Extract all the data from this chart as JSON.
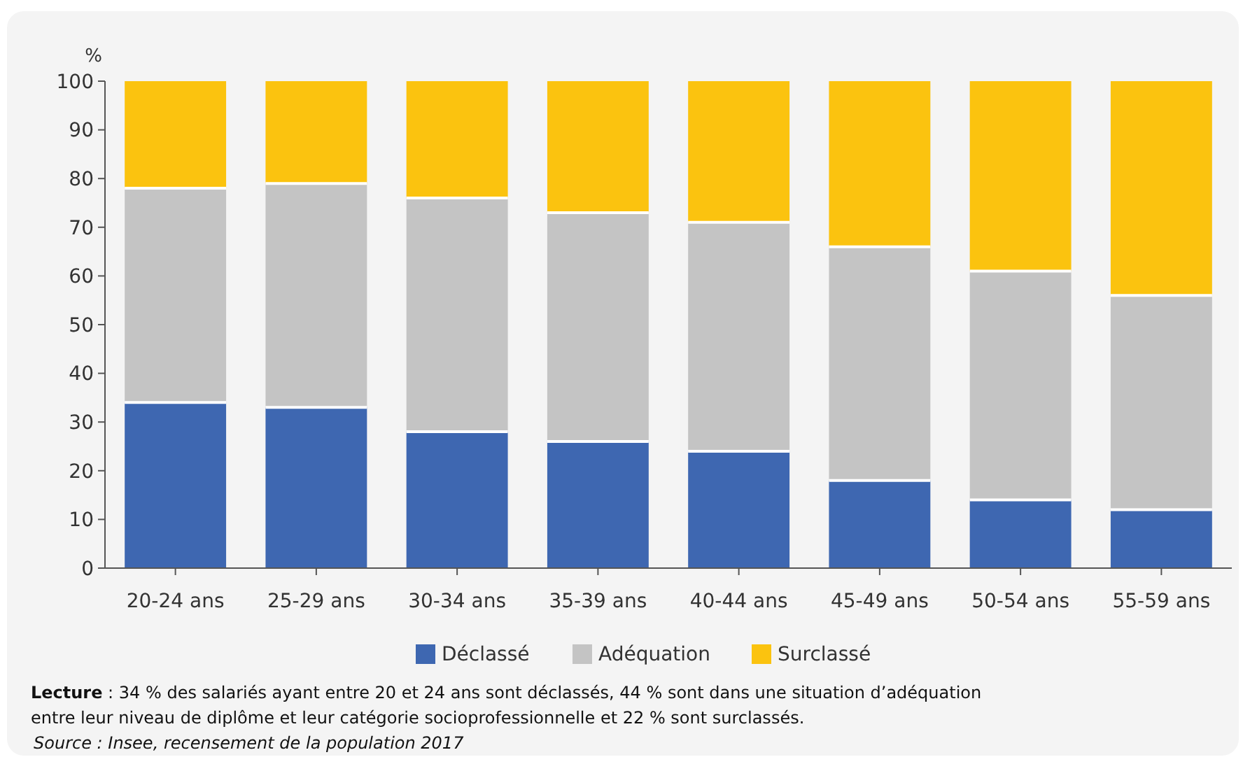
{
  "chart_data": {
    "type": "bar",
    "stacked": true,
    "ylabel": "%",
    "categories": [
      "20-24 ans",
      "25-29 ans",
      "30-34 ans",
      "35-39 ans",
      "40-44 ans",
      "45-49 ans",
      "50-54 ans",
      "55-59 ans"
    ],
    "series": [
      {
        "name": "Déclassé",
        "color": "#3e67b1",
        "values": [
          34,
          33,
          28,
          26,
          24,
          18,
          14,
          12
        ]
      },
      {
        "name": "Adéquation",
        "color": "#c4c4c4",
        "values": [
          44,
          46,
          48,
          47,
          47,
          48,
          47,
          44
        ]
      },
      {
        "name": "Surclassé",
        "color": "#fbc30f",
        "values": [
          22,
          21,
          24,
          27,
          29,
          34,
          39,
          44
        ]
      }
    ],
    "ylim": [
      0,
      100
    ],
    "yticks": [
      0,
      10,
      20,
      30,
      40,
      50,
      60,
      70,
      80,
      90,
      100
    ],
    "grid": false,
    "legend": "bottom",
    "annotations": [
      "Lecture : 34 % des salariés ayant entre 20 et 24 ans sont déclassés, 44 % sont dans une situation d’adéquation entre leur niveau de diplôme et leur catégorie socioprofessionnelle et 22 % sont surclassés.",
      "Source : Insee, recensement de la population 2017"
    ]
  }
}
